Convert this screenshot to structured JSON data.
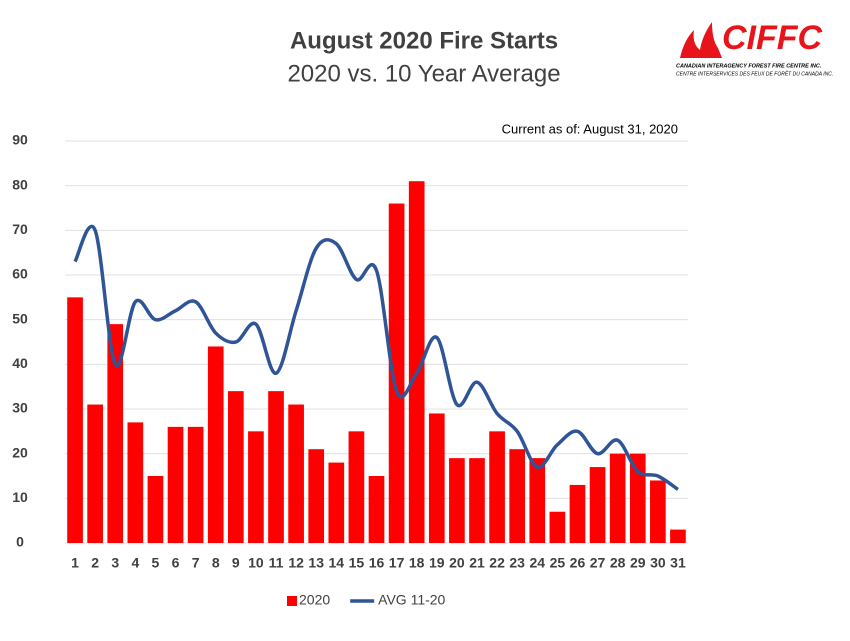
{
  "logo": {
    "name": "CIFFC",
    "line1": "CANADIAN INTERAGENCY FOREST FIRE CENTRE INC.",
    "line2": "CENTRE INTERSERVICES DES FEUX DE FORÊT DU CANADA INC."
  },
  "chart_data": {
    "type": "bar",
    "title": "August 2020 Fire Starts",
    "subtitle": "2020 vs. 10 Year Average",
    "annotation": "Current as of:  August 31, 2020",
    "categories": [
      "1",
      "2",
      "3",
      "4",
      "5",
      "6",
      "7",
      "8",
      "9",
      "10",
      "11",
      "12",
      "13",
      "14",
      "15",
      "16",
      "17",
      "18",
      "19",
      "20",
      "21",
      "22",
      "23",
      "24",
      "25",
      "26",
      "27",
      "28",
      "29",
      "30",
      "31"
    ],
    "series": [
      {
        "name": "2020",
        "type": "bar",
        "color": "#ff0000",
        "values": [
          55,
          31,
          49,
          27,
          15,
          26,
          26,
          44,
          34,
          25,
          34,
          31,
          21,
          18,
          25,
          15,
          76,
          81,
          29,
          19,
          19,
          25,
          21,
          19,
          7,
          13,
          17,
          20,
          20,
          14,
          3
        ]
      },
      {
        "name": "AVG 11-20",
        "type": "line",
        "smooth": true,
        "color": "#2f5597",
        "values": [
          63,
          70,
          40,
          54,
          50,
          52,
          54,
          47,
          45,
          49,
          38,
          52,
          66,
          67,
          59,
          61,
          34,
          38,
          46,
          31,
          36,
          29,
          25,
          17,
          22,
          25,
          20,
          23,
          16,
          15,
          12
        ]
      }
    ],
    "ylim": [
      0,
      90
    ],
    "yticks": [
      0,
      10,
      20,
      30,
      40,
      50,
      60,
      70,
      80,
      90
    ],
    "grid": true,
    "legend": "bottom"
  }
}
